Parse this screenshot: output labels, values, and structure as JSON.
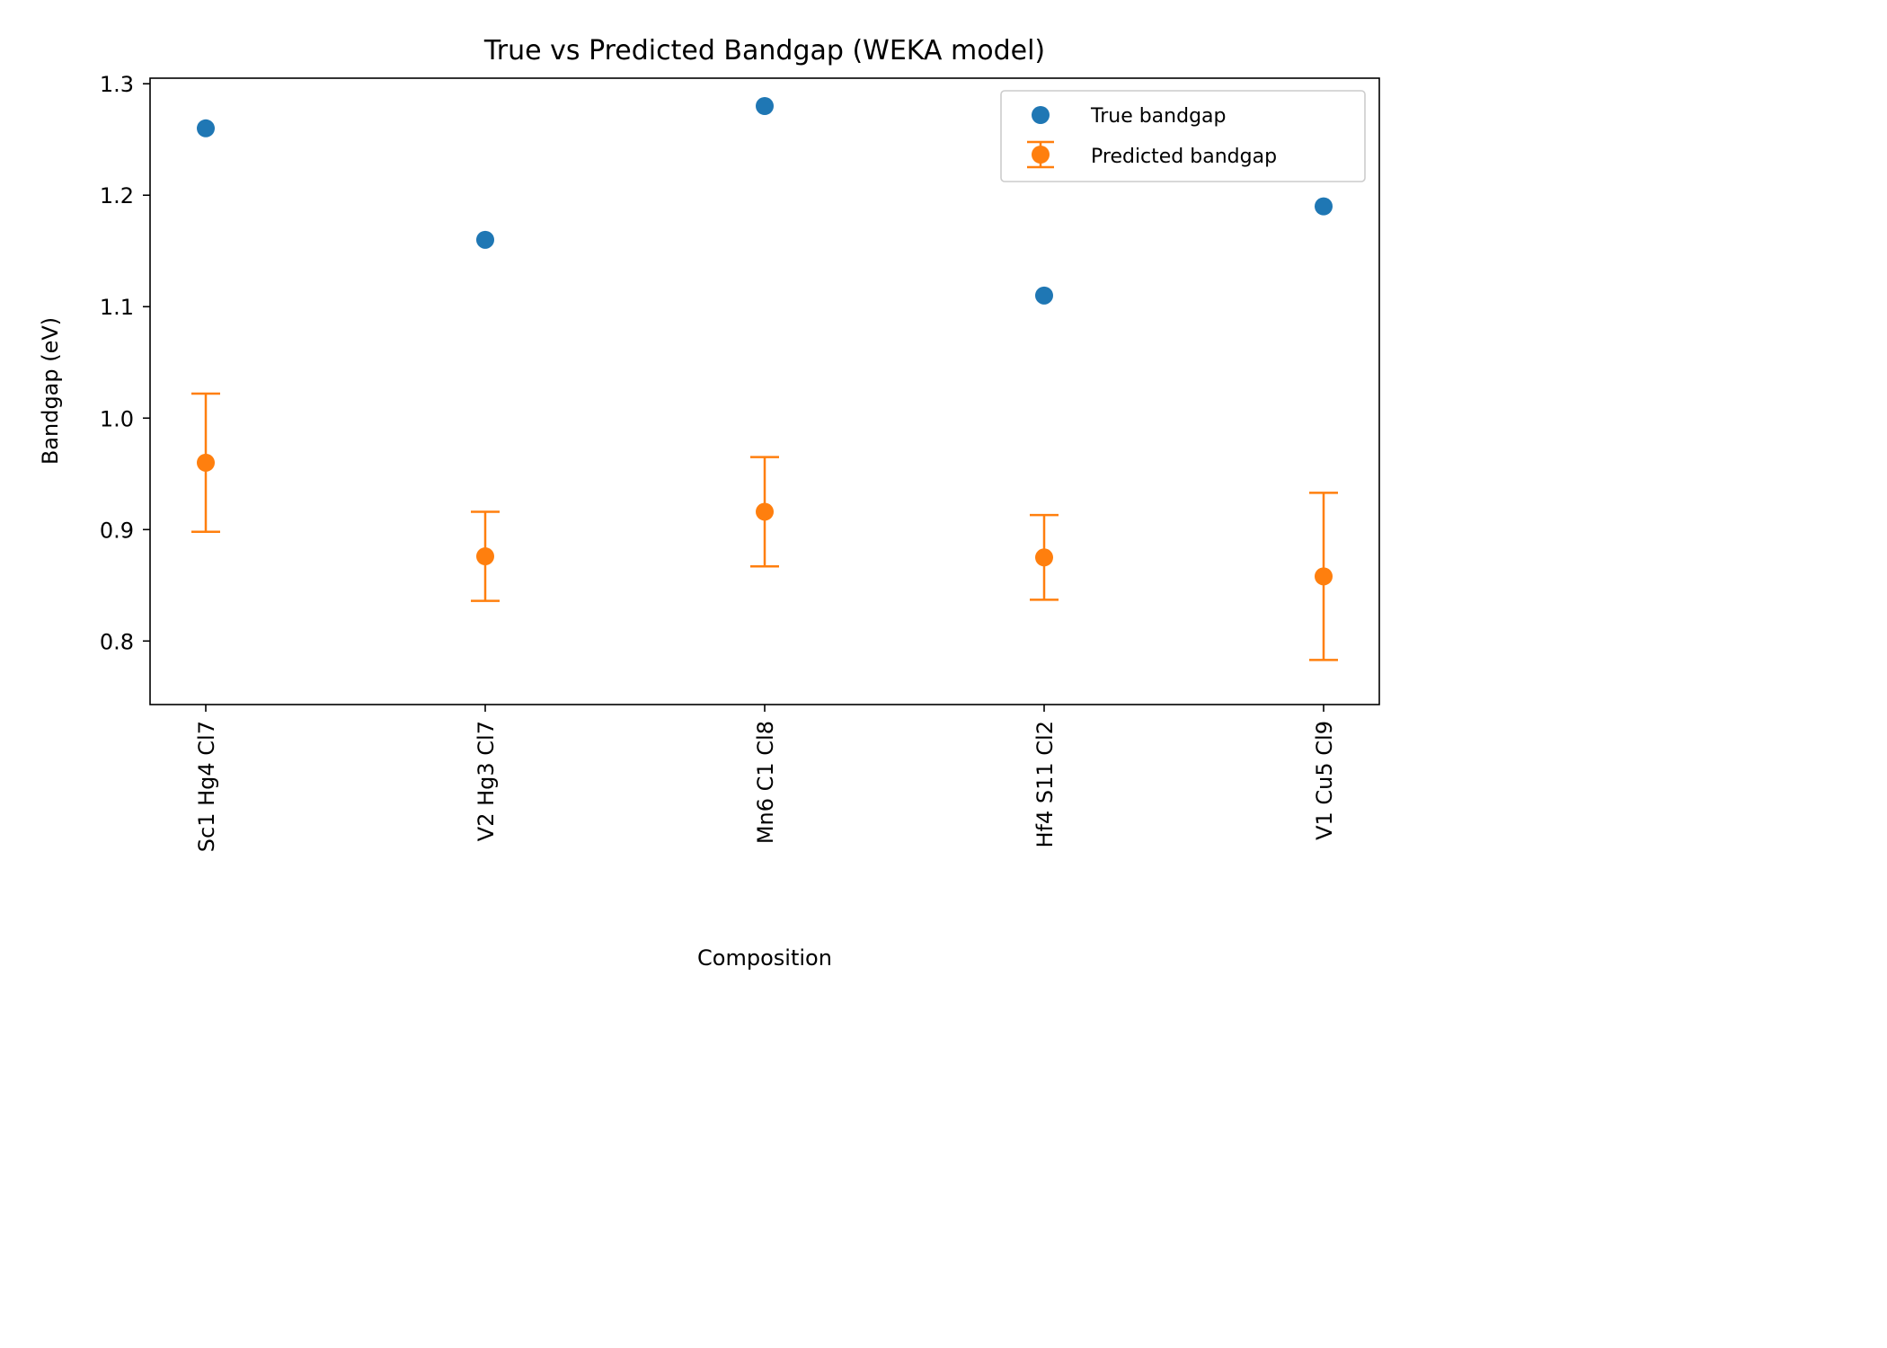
{
  "chart_data": {
    "type": "scatter",
    "title": "True vs Predicted Bandgap (WEKA model)",
    "xlabel": "Composition",
    "ylabel": "Bandgap (eV)",
    "categories": [
      "Sc1 Hg4 Cl7",
      "V2 Hg3 Cl7",
      "Mn6 C1 Cl8",
      "Hf4 S11 Cl2",
      "V1 Cu5 Cl9"
    ],
    "ylim": [
      0.743,
      1.305
    ],
    "yticks": [
      0.8,
      0.9,
      1.0,
      1.1,
      1.2,
      1.3
    ],
    "ytick_labels": [
      "0.8",
      "0.9",
      "1.0",
      "1.1",
      "1.2",
      "1.3"
    ],
    "grid": false,
    "legend_position": "top-right",
    "series": [
      {
        "name": "True bandgap",
        "kind": "scatter",
        "color": "#1f77b4",
        "values": [
          1.26,
          1.16,
          1.28,
          1.11,
          1.19
        ]
      },
      {
        "name": "Predicted bandgap",
        "kind": "errorbar",
        "color": "#ff7f0e",
        "values": [
          0.96,
          0.876,
          0.916,
          0.875,
          0.858
        ],
        "errors": [
          0.062,
          0.04,
          0.049,
          0.038,
          0.075
        ]
      }
    ]
  }
}
